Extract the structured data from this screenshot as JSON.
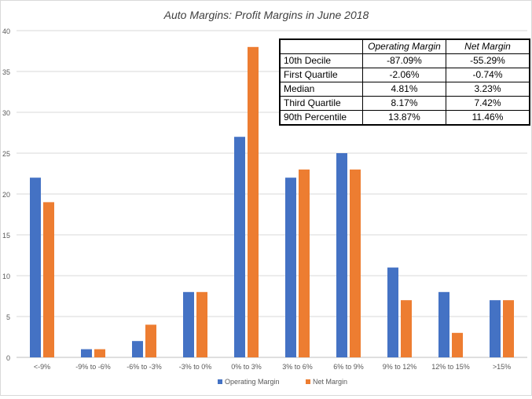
{
  "chart_data": {
    "type": "bar",
    "title": "Auto Margins: Profit Margins in June 2018",
    "categories": [
      "<-9%",
      "-9% to -6%",
      "-6% to -3%",
      "-3% to 0%",
      "0% to 3%",
      "3% to 6%",
      "6% to 9%",
      "9% to 12%",
      "12% to 15%",
      ">15%"
    ],
    "series": [
      {
        "name": "Operating Margin",
        "color": "#4472C4",
        "values": [
          22,
          1,
          2,
          8,
          27,
          22,
          25,
          11,
          8,
          7
        ]
      },
      {
        "name": "Net Margin",
        "color": "#ED7D31",
        "values": [
          19,
          1,
          4,
          8,
          38,
          23,
          23,
          7,
          3,
          7
        ]
      }
    ],
    "ylim": [
      0,
      40
    ],
    "yticks": [
      0,
      5,
      10,
      15,
      20,
      25,
      30,
      35,
      40
    ],
    "grid": true,
    "legend_position": "bottom"
  },
  "table": {
    "headers": [
      "",
      "Operating Margin",
      "Net Margin"
    ],
    "rows": [
      [
        "10th Decile",
        "-87.09%",
        "-55.29%"
      ],
      [
        "First Quartile",
        "-2.06%",
        "-0.74%"
      ],
      [
        "Median",
        "4.81%",
        "3.23%"
      ],
      [
        "Third Quartile",
        "8.17%",
        "7.42%"
      ],
      [
        "90th Percentile",
        "13.87%",
        "11.46%"
      ]
    ]
  }
}
